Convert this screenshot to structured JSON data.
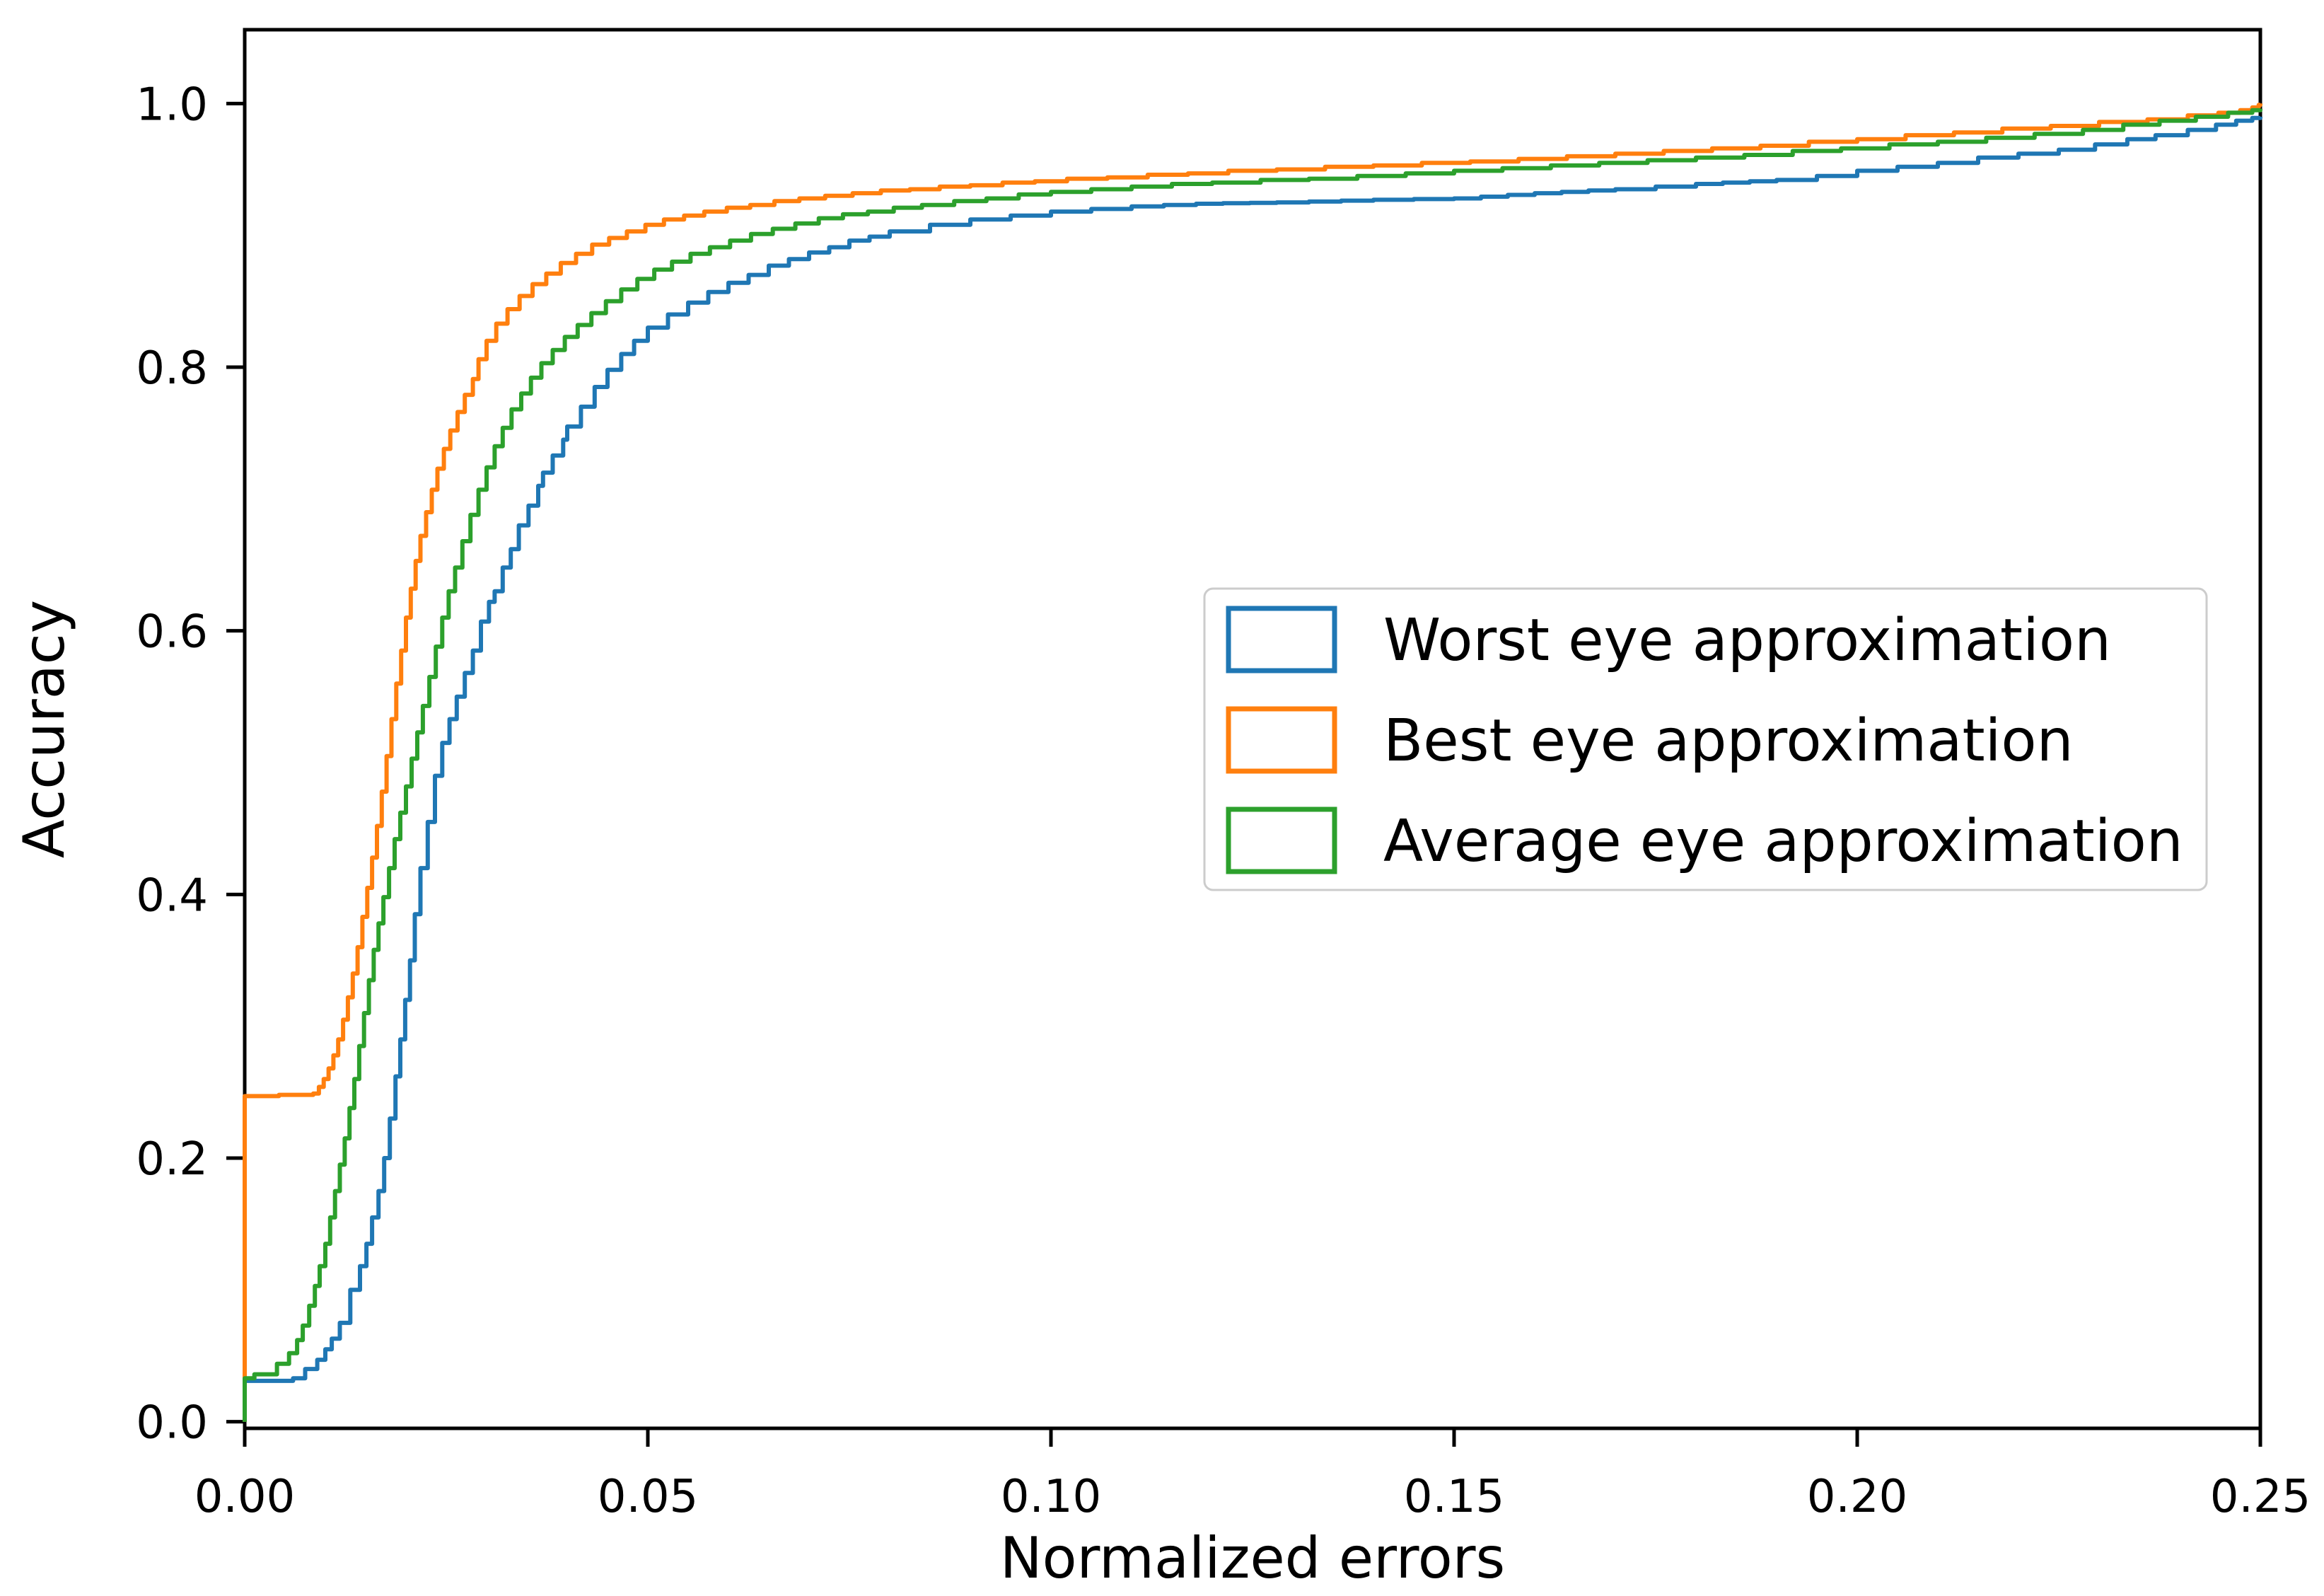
{
  "figure": {
    "background_color": "#ffffff",
    "axis_color": "#000000",
    "legend_border_color": "#cccccc",
    "legend_background": "#ffffff"
  },
  "chart_data": {
    "type": "line",
    "line_style": "step-post",
    "title": "",
    "xlabel": "Normalized errors",
    "ylabel": "Accuracy",
    "xlim": [
      0,
      0.25
    ],
    "ylim": [
      -0.005,
      1.056
    ],
    "grid": false,
    "legend_position": "center right",
    "x_tick_labels": [
      "0.00",
      "0.05",
      "0.10",
      "0.15",
      "0.20",
      "0.25"
    ],
    "x_tick_values": [
      0,
      0.05,
      0.1,
      0.15,
      0.2,
      0.25
    ],
    "y_tick_labels": [
      "0.0",
      "0.2",
      "0.4",
      "0.6",
      "0.8",
      "1.0"
    ],
    "y_tick_values": [
      0,
      0.2,
      0.4,
      0.6,
      0.8,
      1.0
    ],
    "series": [
      {
        "name": "Worst eye approximation",
        "color": "#1f77b4",
        "points": [
          [
            0.0,
            0.0
          ],
          [
            0.0,
            0.031
          ],
          [
            0.006,
            0.033
          ],
          [
            0.0075,
            0.04
          ],
          [
            0.009,
            0.047
          ],
          [
            0.01,
            0.055
          ],
          [
            0.0108,
            0.063
          ],
          [
            0.0118,
            0.075
          ],
          [
            0.0131,
            0.1
          ],
          [
            0.0143,
            0.118
          ],
          [
            0.0151,
            0.135
          ],
          [
            0.0158,
            0.155
          ],
          [
            0.0166,
            0.175
          ],
          [
            0.0173,
            0.2
          ],
          [
            0.018,
            0.23
          ],
          [
            0.0187,
            0.262
          ],
          [
            0.0193,
            0.29
          ],
          [
            0.0199,
            0.32
          ],
          [
            0.0205,
            0.35
          ],
          [
            0.0211,
            0.385
          ],
          [
            0.0218,
            0.42
          ],
          [
            0.0227,
            0.455
          ],
          [
            0.0236,
            0.49
          ],
          [
            0.0245,
            0.515
          ],
          [
            0.0254,
            0.533
          ],
          [
            0.0263,
            0.55
          ],
          [
            0.0273,
            0.568
          ],
          [
            0.0283,
            0.585
          ],
          [
            0.0293,
            0.607
          ],
          [
            0.0303,
            0.622
          ],
          [
            0.031,
            0.63
          ],
          [
            0.032,
            0.648
          ],
          [
            0.033,
            0.662
          ],
          [
            0.034,
            0.68
          ],
          [
            0.0352,
            0.695
          ],
          [
            0.0364,
            0.71
          ],
          [
            0.037,
            0.72
          ],
          [
            0.0382,
            0.733
          ],
          [
            0.0395,
            0.745
          ],
          [
            0.04,
            0.755
          ],
          [
            0.0417,
            0.77
          ],
          [
            0.0434,
            0.785
          ],
          [
            0.045,
            0.798
          ],
          [
            0.0467,
            0.81
          ],
          [
            0.0483,
            0.82
          ],
          [
            0.05,
            0.83
          ],
          [
            0.0525,
            0.84
          ],
          [
            0.055,
            0.849
          ],
          [
            0.0575,
            0.857
          ],
          [
            0.06,
            0.864
          ],
          [
            0.0625,
            0.87
          ],
          [
            0.065,
            0.877
          ],
          [
            0.0675,
            0.882
          ],
          [
            0.07,
            0.887
          ],
          [
            0.0725,
            0.891
          ],
          [
            0.075,
            0.896
          ],
          [
            0.0775,
            0.899
          ],
          [
            0.08,
            0.903
          ],
          [
            0.085,
            0.908
          ],
          [
            0.09,
            0.912
          ],
          [
            0.095,
            0.915
          ],
          [
            0.1,
            0.918
          ],
          [
            0.105,
            0.92
          ],
          [
            0.11,
            0.922
          ],
          [
            0.118,
            0.924
          ],
          [
            0.128,
            0.925
          ],
          [
            0.14,
            0.927
          ],
          [
            0.15,
            0.928
          ],
          [
            0.16,
            0.932
          ],
          [
            0.17,
            0.935
          ],
          [
            0.18,
            0.939
          ],
          [
            0.19,
            0.942
          ],
          [
            0.195,
            0.945
          ],
          [
            0.2,
            0.949
          ],
          [
            0.205,
            0.952
          ],
          [
            0.21,
            0.955
          ],
          [
            0.215,
            0.959
          ],
          [
            0.22,
            0.962
          ],
          [
            0.225,
            0.965
          ],
          [
            0.2295,
            0.969
          ],
          [
            0.2335,
            0.973
          ],
          [
            0.237,
            0.976
          ],
          [
            0.241,
            0.98
          ],
          [
            0.2445,
            0.984
          ],
          [
            0.247,
            0.987
          ],
          [
            0.249,
            0.989
          ],
          [
            0.25,
            0.99
          ]
        ]
      },
      {
        "name": "Best eye approximation",
        "color": "#ff7f0e",
        "points": [
          [
            0.0,
            0.0
          ],
          [
            0.0,
            0.247
          ],
          [
            0.0085,
            0.249
          ],
          [
            0.0092,
            0.254
          ],
          [
            0.0098,
            0.26
          ],
          [
            0.0104,
            0.268
          ],
          [
            0.011,
            0.278
          ],
          [
            0.0116,
            0.29
          ],
          [
            0.0122,
            0.305
          ],
          [
            0.0128,
            0.322
          ],
          [
            0.0134,
            0.34
          ],
          [
            0.014,
            0.36
          ],
          [
            0.0146,
            0.383
          ],
          [
            0.0152,
            0.405
          ],
          [
            0.0158,
            0.428
          ],
          [
            0.0164,
            0.452
          ],
          [
            0.017,
            0.478
          ],
          [
            0.0176,
            0.505
          ],
          [
            0.0182,
            0.533
          ],
          [
            0.0188,
            0.56
          ],
          [
            0.0194,
            0.585
          ],
          [
            0.02,
            0.61
          ],
          [
            0.0206,
            0.632
          ],
          [
            0.0212,
            0.653
          ],
          [
            0.0218,
            0.672
          ],
          [
            0.0225,
            0.69
          ],
          [
            0.0232,
            0.707
          ],
          [
            0.0239,
            0.723
          ],
          [
            0.0247,
            0.738
          ],
          [
            0.0255,
            0.752
          ],
          [
            0.0264,
            0.766
          ],
          [
            0.0273,
            0.779
          ],
          [
            0.0283,
            0.791
          ],
          [
            0.029,
            0.806
          ],
          [
            0.03,
            0.82
          ],
          [
            0.0312,
            0.833
          ],
          [
            0.0326,
            0.844
          ],
          [
            0.0341,
            0.854
          ],
          [
            0.0357,
            0.863
          ],
          [
            0.0374,
            0.871
          ],
          [
            0.0392,
            0.879
          ],
          [
            0.0411,
            0.886
          ],
          [
            0.0431,
            0.893
          ],
          [
            0.0452,
            0.898
          ],
          [
            0.0474,
            0.903
          ],
          [
            0.0497,
            0.908
          ],
          [
            0.052,
            0.912
          ],
          [
            0.0545,
            0.915
          ],
          [
            0.057,
            0.918
          ],
          [
            0.0598,
            0.921
          ],
          [
            0.0627,
            0.923
          ],
          [
            0.0657,
            0.926
          ],
          [
            0.0688,
            0.928
          ],
          [
            0.072,
            0.93
          ],
          [
            0.0754,
            0.932
          ],
          [
            0.0789,
            0.934
          ],
          [
            0.0825,
            0.935
          ],
          [
            0.0862,
            0.937
          ],
          [
            0.09,
            0.938
          ],
          [
            0.094,
            0.94
          ],
          [
            0.098,
            0.941
          ],
          [
            0.102,
            0.943
          ],
          [
            0.107,
            0.944
          ],
          [
            0.112,
            0.946
          ],
          [
            0.117,
            0.947
          ],
          [
            0.122,
            0.949
          ],
          [
            0.128,
            0.95
          ],
          [
            0.134,
            0.952
          ],
          [
            0.14,
            0.953
          ],
          [
            0.146,
            0.955
          ],
          [
            0.152,
            0.956
          ],
          [
            0.158,
            0.958
          ],
          [
            0.164,
            0.96
          ],
          [
            0.17,
            0.962
          ],
          [
            0.176,
            0.964
          ],
          [
            0.182,
            0.966
          ],
          [
            0.188,
            0.968
          ],
          [
            0.194,
            0.971
          ],
          [
            0.2,
            0.973
          ],
          [
            0.206,
            0.976
          ],
          [
            0.212,
            0.978
          ],
          [
            0.218,
            0.981
          ],
          [
            0.224,
            0.983
          ],
          [
            0.23,
            0.986
          ],
          [
            0.236,
            0.988
          ],
          [
            0.241,
            0.991
          ],
          [
            0.2448,
            0.993
          ],
          [
            0.2475,
            0.995
          ],
          [
            0.249,
            0.997
          ],
          [
            0.2498,
            0.999
          ],
          [
            0.25,
            1.0
          ]
        ]
      },
      {
        "name": "Average eye approximation",
        "color": "#2ca02c",
        "points": [
          [
            0.0,
            0.0
          ],
          [
            0.0,
            0.033
          ],
          [
            0.0012,
            0.036
          ],
          [
            0.004,
            0.044
          ],
          [
            0.0055,
            0.052
          ],
          [
            0.0065,
            0.062
          ],
          [
            0.0072,
            0.073
          ],
          [
            0.008,
            0.088
          ],
          [
            0.0087,
            0.103
          ],
          [
            0.0093,
            0.118
          ],
          [
            0.01,
            0.135
          ],
          [
            0.0106,
            0.155
          ],
          [
            0.0112,
            0.175
          ],
          [
            0.0118,
            0.195
          ],
          [
            0.0124,
            0.215
          ],
          [
            0.013,
            0.238
          ],
          [
            0.0136,
            0.26
          ],
          [
            0.0142,
            0.285
          ],
          [
            0.0148,
            0.31
          ],
          [
            0.0154,
            0.335
          ],
          [
            0.016,
            0.358
          ],
          [
            0.0166,
            0.378
          ],
          [
            0.0172,
            0.398
          ],
          [
            0.0179,
            0.42
          ],
          [
            0.0186,
            0.442
          ],
          [
            0.0193,
            0.462
          ],
          [
            0.02,
            0.482
          ],
          [
            0.0207,
            0.503
          ],
          [
            0.0214,
            0.523
          ],
          [
            0.0221,
            0.543
          ],
          [
            0.0229,
            0.565
          ],
          [
            0.0237,
            0.588
          ],
          [
            0.0245,
            0.61
          ],
          [
            0.0253,
            0.63
          ],
          [
            0.0261,
            0.648
          ],
          [
            0.027,
            0.668
          ],
          [
            0.028,
            0.688
          ],
          [
            0.029,
            0.707
          ],
          [
            0.03,
            0.724
          ],
          [
            0.031,
            0.74
          ],
          [
            0.032,
            0.754
          ],
          [
            0.0331,
            0.768
          ],
          [
            0.0343,
            0.78
          ],
          [
            0.0355,
            0.792
          ],
          [
            0.0368,
            0.803
          ],
          [
            0.0382,
            0.813
          ],
          [
            0.0397,
            0.823
          ],
          [
            0.0413,
            0.832
          ],
          [
            0.043,
            0.841
          ],
          [
            0.0448,
            0.85
          ],
          [
            0.0467,
            0.859
          ],
          [
            0.0487,
            0.867
          ],
          [
            0.0508,
            0.874
          ],
          [
            0.053,
            0.88
          ],
          [
            0.0553,
            0.886
          ],
          [
            0.0577,
            0.891
          ],
          [
            0.0602,
            0.896
          ],
          [
            0.0628,
            0.901
          ],
          [
            0.0655,
            0.905
          ],
          [
            0.0683,
            0.909
          ],
          [
            0.0712,
            0.913
          ],
          [
            0.0742,
            0.916
          ],
          [
            0.0773,
            0.918
          ],
          [
            0.0805,
            0.921
          ],
          [
            0.084,
            0.923
          ],
          [
            0.088,
            0.926
          ],
          [
            0.092,
            0.928
          ],
          [
            0.096,
            0.931
          ],
          [
            0.1,
            0.933
          ],
          [
            0.105,
            0.935
          ],
          [
            0.11,
            0.937
          ],
          [
            0.115,
            0.939
          ],
          [
            0.12,
            0.94
          ],
          [
            0.126,
            0.942
          ],
          [
            0.132,
            0.943
          ],
          [
            0.138,
            0.945
          ],
          [
            0.144,
            0.947
          ],
          [
            0.15,
            0.949
          ],
          [
            0.156,
            0.951
          ],
          [
            0.162,
            0.953
          ],
          [
            0.168,
            0.955
          ],
          [
            0.174,
            0.957
          ],
          [
            0.18,
            0.959
          ],
          [
            0.186,
            0.961
          ],
          [
            0.192,
            0.964
          ],
          [
            0.198,
            0.966
          ],
          [
            0.204,
            0.969
          ],
          [
            0.21,
            0.971
          ],
          [
            0.216,
            0.974
          ],
          [
            0.222,
            0.977
          ],
          [
            0.228,
            0.98
          ],
          [
            0.233,
            0.984
          ],
          [
            0.2375,
            0.987
          ],
          [
            0.242,
            0.99
          ],
          [
            0.246,
            0.993
          ],
          [
            0.249,
            0.995
          ],
          [
            0.25,
            0.996
          ]
        ]
      }
    ]
  }
}
